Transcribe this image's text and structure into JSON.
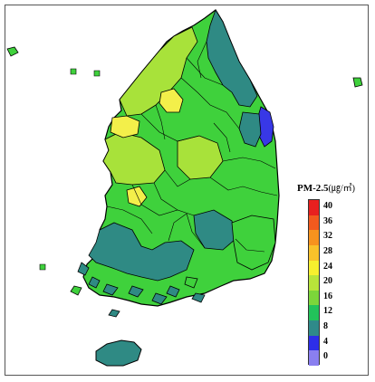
{
  "legend": {
    "title_main": "PM-2.5",
    "title_unit": "(㎍/㎥)",
    "ticks": [
      "40",
      "36",
      "32",
      "28",
      "24",
      "20",
      "16",
      "12",
      "8",
      "4",
      "0"
    ],
    "colors": [
      "#e8201f",
      "#f25a1e",
      "#f7931e",
      "#f9c22a",
      "#f7ef2e",
      "#b8e43a",
      "#7cd63a",
      "#22c35a",
      "#2f8a8a",
      "#2d2ee8",
      "#8a7ff0"
    ]
  },
  "map": {
    "palette": {
      "yellow": "#f3ef4a",
      "lime": "#a8e23a",
      "green": "#3fd13c",
      "teal": "#2f8a84",
      "blue": "#3838e6"
    }
  }
}
